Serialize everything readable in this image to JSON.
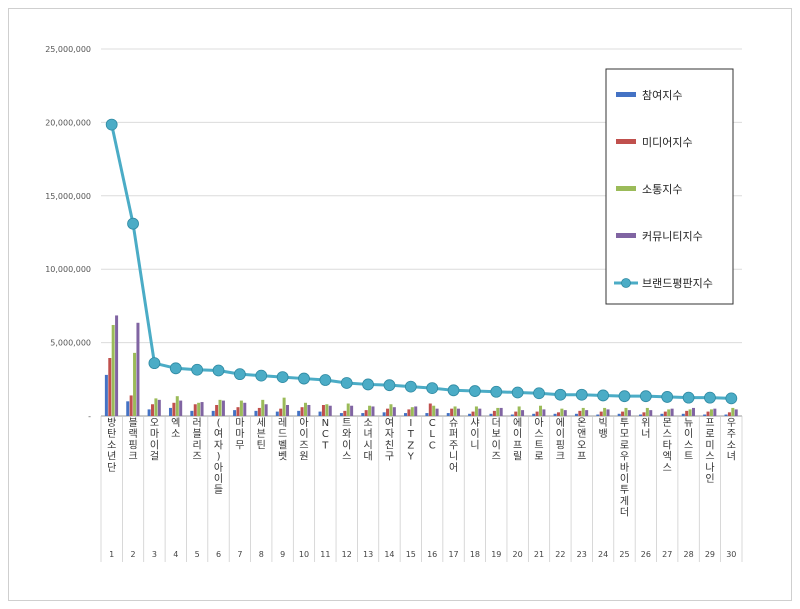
{
  "chart_data": {
    "type": "bar",
    "categories": [
      "방탄소년단",
      "블랙핑크",
      "오마이걸",
      "엑소",
      "러블리즈",
      "(여자)아이들",
      "마마무",
      "세븐틴",
      "레드벨벳",
      "아이즈원",
      "NCT",
      "트와이스",
      "소녀시대",
      "여자친구",
      "ITZY",
      "CLC",
      "슈퍼주니어",
      "샤이니",
      "더보이즈",
      "에이프릴",
      "아스트로",
      "에이핑크",
      "온앤오프",
      "빅뱅",
      "투모로우바이투게더",
      "위너",
      "몬스타엑스",
      "뉴이스트",
      "프로미스나인",
      "우주소녀"
    ],
    "ranks": [
      "1",
      "2",
      "3",
      "4",
      "5",
      "6",
      "7",
      "8",
      "9",
      "10",
      "11",
      "12",
      "13",
      "14",
      "15",
      "16",
      "17",
      "18",
      "19",
      "20",
      "21",
      "22",
      "23",
      "24",
      "25",
      "26",
      "27",
      "28",
      "29",
      "30"
    ],
    "yticks": [
      "25,000,000",
      "20,000,000",
      "15,000,000",
      "10,000,000",
      "5,000,000",
      "-"
    ],
    "ylim": [
      0,
      25000000
    ],
    "grid": true,
    "legend_position": "right",
    "series": [
      {
        "name": "참여지수",
        "color": "#4472c4",
        "kind": "bar",
        "values": [
          2800000,
          1000000,
          450000,
          550000,
          350000,
          350000,
          400000,
          350000,
          300000,
          350000,
          300000,
          200000,
          200000,
          250000,
          200000,
          200000,
          200000,
          150000,
          150000,
          100000,
          150000,
          150000,
          150000,
          100000,
          150000,
          100000,
          150000,
          150000,
          100000,
          100000
        ]
      },
      {
        "name": "미디어지수",
        "color": "#c0504d",
        "kind": "bar",
        "values": [
          3950000,
          1400000,
          800000,
          900000,
          800000,
          750000,
          600000,
          550000,
          500000,
          600000,
          750000,
          350000,
          400000,
          500000,
          450000,
          850000,
          500000,
          300000,
          350000,
          300000,
          300000,
          250000,
          350000,
          300000,
          300000,
          250000,
          300000,
          350000,
          300000,
          250000
        ]
      },
      {
        "name": "소통지수",
        "color": "#9bbb59",
        "kind": "bar",
        "values": [
          6200000,
          4300000,
          1200000,
          1350000,
          900000,
          1100000,
          1050000,
          1100000,
          1250000,
          900000,
          800000,
          850000,
          700000,
          800000,
          600000,
          700000,
          650000,
          650000,
          550000,
          650000,
          700000,
          500000,
          550000,
          550000,
          550000,
          550000,
          450000,
          450000,
          450000,
          550000
        ]
      },
      {
        "name": "커뮤니티지수",
        "color": "#8064a2",
        "kind": "bar",
        "values": [
          6850000,
          6350000,
          1100000,
          1050000,
          950000,
          1050000,
          900000,
          800000,
          750000,
          750000,
          700000,
          700000,
          650000,
          600000,
          650000,
          500000,
          500000,
          500000,
          550000,
          400000,
          450000,
          400000,
          400000,
          450000,
          400000,
          400000,
          500000,
          550000,
          500000,
          450000
        ]
      },
      {
        "name": "브랜드평판지수",
        "color": "#4bacc6",
        "kind": "line",
        "values": [
          19850000,
          13100000,
          3600000,
          3250000,
          3150000,
          3100000,
          2850000,
          2750000,
          2650000,
          2550000,
          2450000,
          2250000,
          2150000,
          2100000,
          2000000,
          1900000,
          1750000,
          1700000,
          1650000,
          1600000,
          1550000,
          1450000,
          1450000,
          1400000,
          1350000,
          1350000,
          1300000,
          1250000,
          1250000,
          1200000
        ]
      }
    ]
  }
}
